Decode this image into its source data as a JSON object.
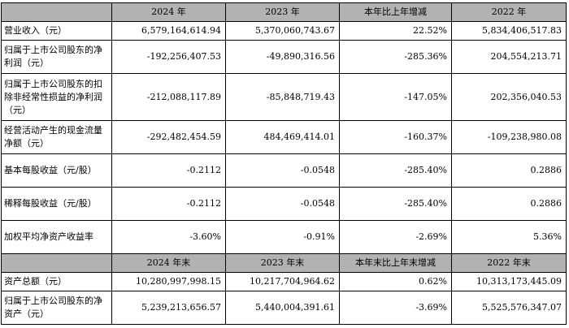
{
  "header1": [
    "2024 年",
    "2023 年",
    "本年比上年增减",
    "2022 年"
  ],
  "rows1": [
    {
      "label": "营业收入（元）",
      "values": [
        "6,579,164,614.94",
        "5,370,060,743.67",
        "22.52%",
        "5,834,406,517.83"
      ],
      "size": "r1"
    },
    {
      "label": "归属于上市公司股东的净利润（元）",
      "values": [
        "-192,256,407.53",
        "-49,890,316.56",
        "-285.36%",
        "204,554,213.71"
      ],
      "size": "r2"
    },
    {
      "label": "归属于上市公司股东的扣除非经常性损益的净利润（元）",
      "values": [
        "-212,088,117.89",
        "-85,848,719.43",
        "-147.05%",
        "202,356,040.53"
      ],
      "size": "r3"
    },
    {
      "label": "经营活动产生的现金流量净额（元）",
      "values": [
        "-292,482,454.59",
        "484,469,414.01",
        "-160.37%",
        "-109,238,980.08"
      ],
      "size": "r2"
    },
    {
      "label": "基本每股收益（元/股）",
      "values": [
        "-0.2112",
        "-0.0548",
        "-285.40%",
        "0.2886"
      ],
      "size": "r2"
    },
    {
      "label": "稀释每股收益（元/股）",
      "values": [
        "-0.2112",
        "-0.0548",
        "-285.40%",
        "0.2886"
      ],
      "size": "r2"
    },
    {
      "label": "加权平均净资产收益率",
      "values": [
        "-3.60%",
        "-0.91%",
        "-2.69%",
        "5.36%"
      ],
      "size": "r2"
    }
  ],
  "header2": [
    "2024 年末",
    "2023 年末",
    "本年末比上年末增减",
    "2022 年末"
  ],
  "rows2": [
    {
      "label": "资产总额（元）",
      "values": [
        "10,280,997,998.15",
        "10,217,704,964.62",
        "0.62%",
        "10,313,173,445.09"
      ],
      "size": "r1"
    },
    {
      "label": "归属于上市公司股东的净资产（元）",
      "values": [
        "5,239,213,656.57",
        "5,440,004,391.61",
        "-3.69%",
        "5,525,576,347.07"
      ],
      "size": "r2"
    }
  ]
}
